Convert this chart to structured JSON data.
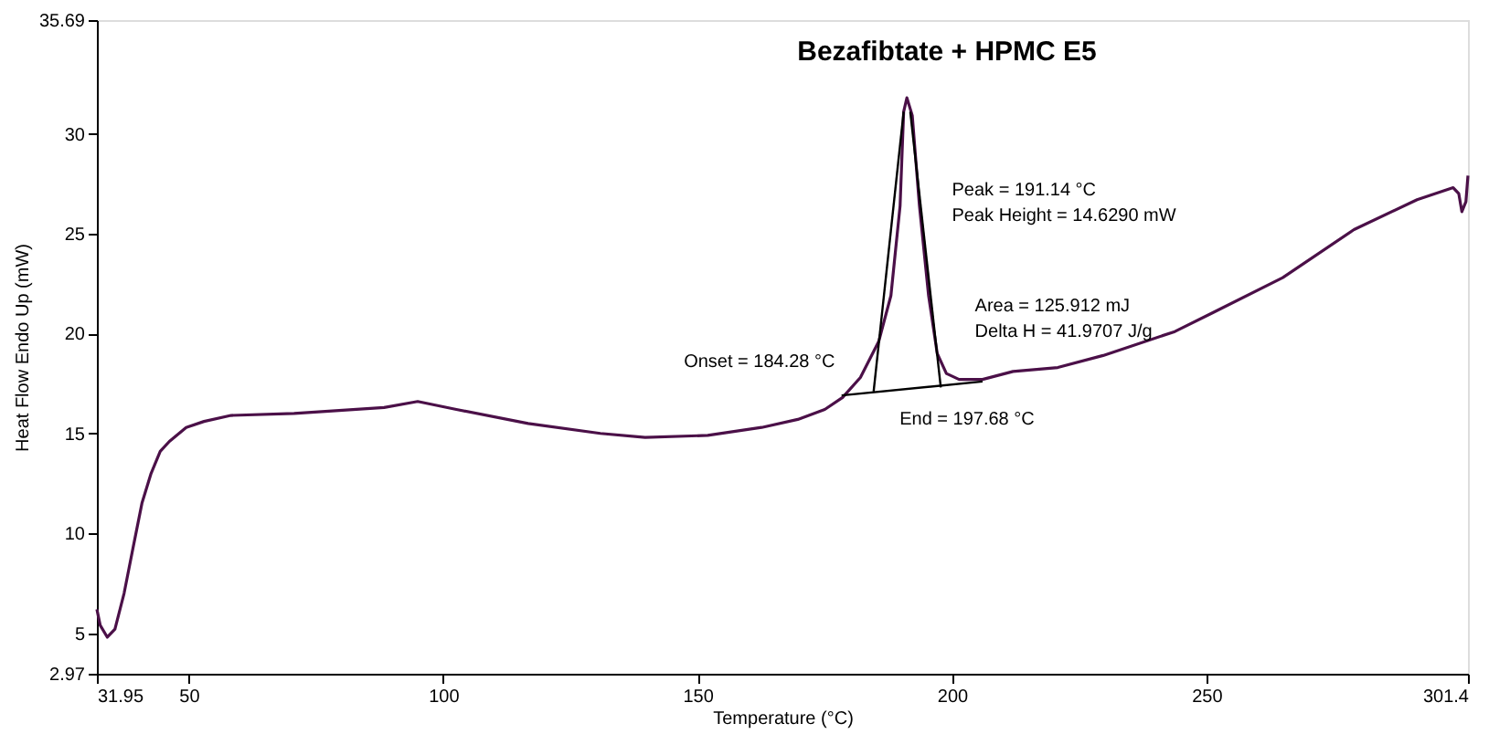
{
  "chart_data": {
    "type": "line",
    "title": "Bezafibtate + HPMC E5",
    "xlabel": "Temperature (°C)",
    "ylabel": "Heat Flow Endo Up (mW)",
    "xlim": [
      31.95,
      301.4
    ],
    "ylim": [
      2.97,
      35.69
    ],
    "xticks": [
      31.95,
      50,
      100,
      150,
      200,
      250,
      301.4
    ],
    "yticks": [
      2.97,
      5,
      10,
      15,
      20,
      25,
      30,
      35.69
    ],
    "grid": false,
    "marker": "none",
    "line_style": "solid",
    "series": [
      {
        "color": "#4b1048",
        "x": [
          31.95,
          32.6,
          34,
          35.5,
          37.3,
          39,
          40.8,
          42.6,
          44.4,
          46.2,
          49.5,
          53,
          58.3,
          70.7,
          88.4,
          95,
          102.6,
          116.7,
          130.9,
          139.7,
          152,
          162.6,
          169.7,
          175,
          178.5,
          182,
          185.6,
          188,
          189.8,
          190.5,
          191.14,
          192.2,
          193.6,
          195.4,
          197.1,
          198.9,
          201.4,
          206,
          212,
          220.8,
          229.7,
          243.8,
          250.9,
          265,
          279,
          291.4,
          298.5,
          299.6,
          300.2,
          301,
          301.4
        ],
        "values": [
          6.2,
          5.4,
          4.8,
          5.2,
          7.0,
          9.2,
          11.5,
          13.0,
          14.1,
          14.6,
          15.3,
          15.6,
          15.9,
          16.0,
          16.3,
          16.6,
          16.2,
          15.5,
          15.0,
          14.8,
          14.9,
          15.3,
          15.7,
          16.2,
          16.8,
          17.8,
          19.6,
          21.9,
          26.4,
          31.1,
          31.8,
          30.9,
          26.4,
          21.9,
          19.0,
          18.0,
          17.7,
          17.7,
          18.1,
          18.3,
          18.9,
          20.1,
          21.0,
          22.8,
          25.2,
          26.7,
          27.3,
          27.0,
          26.1,
          26.6,
          27.9
        ]
      },
      {
        "color": "#000000",
        "x": [
          178.3,
          206
        ],
        "values": [
          16.9,
          17.6
        ]
      },
      {
        "color": "#000000",
        "x": [
          184.6,
          190.5
        ],
        "values": [
          17.1,
          31.1
        ]
      },
      {
        "color": "#000000",
        "x": [
          197.8,
          191.8
        ],
        "values": [
          17.3,
          31.1
        ]
      }
    ],
    "annotations": [
      "Peak = 191.14 °C",
      "Peak Height = 14.6290 mW",
      "Area = 125.912 mJ",
      "Delta H = 41.9707 J/g",
      "Onset = 184.28 °C",
      "End = 197.68 °C"
    ]
  }
}
